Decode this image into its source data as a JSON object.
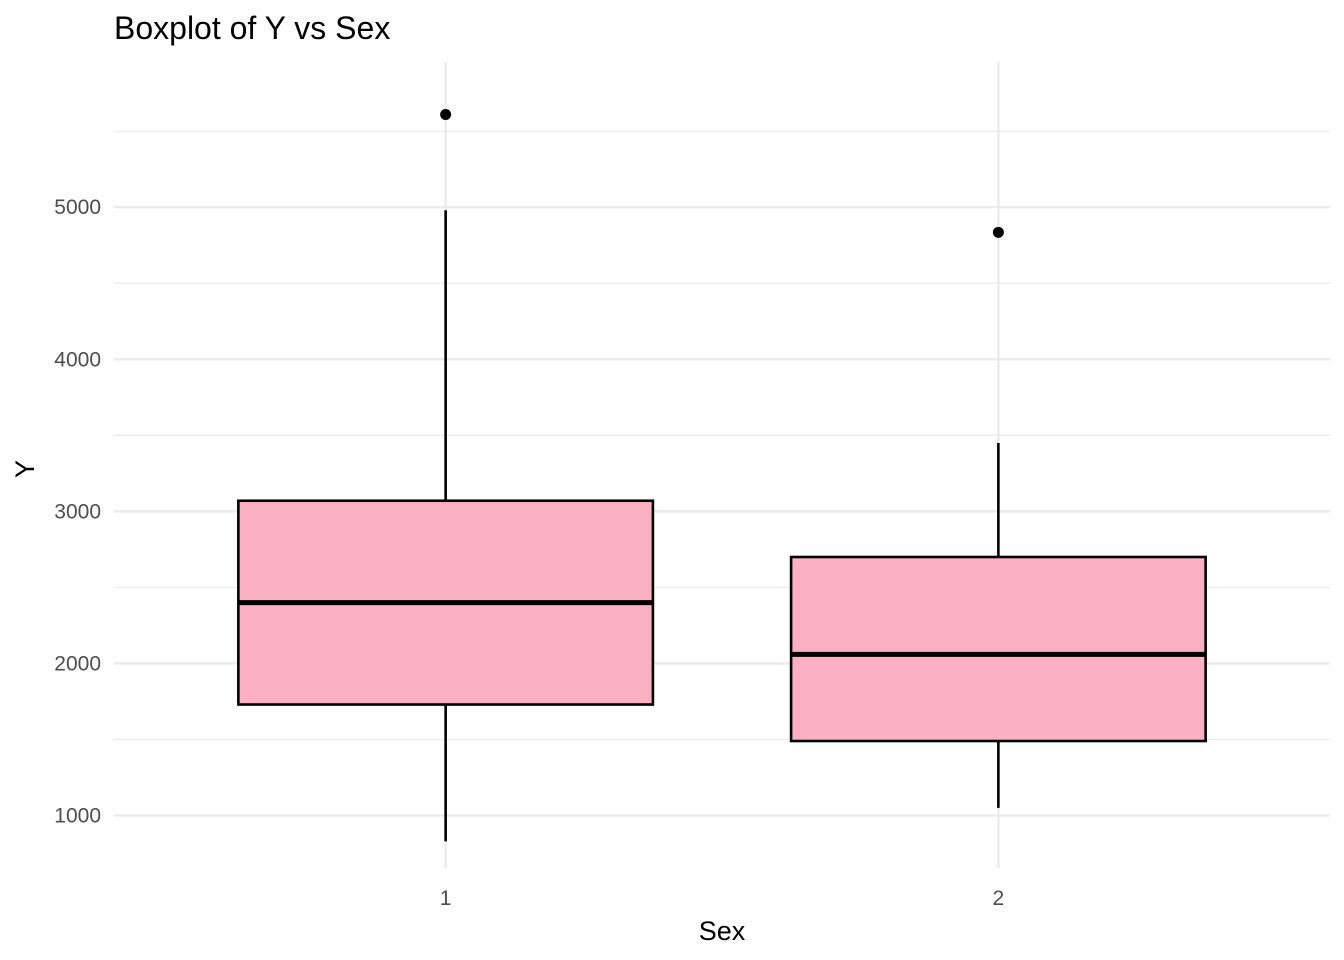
{
  "chart_data": {
    "type": "boxplot",
    "title": "Boxplot of Y vs Sex",
    "xlabel": "Sex",
    "ylabel": "Y",
    "categories": [
      "1",
      "2"
    ],
    "boxes": [
      {
        "category": "1",
        "whisker_low": 830,
        "q1": 1730,
        "median": 2400,
        "q3": 3070,
        "whisker_high": 4980,
        "outliers": [
          5610
        ]
      },
      {
        "category": "2",
        "whisker_low": 1050,
        "q1": 1490,
        "median": 2060,
        "q3": 2700,
        "whisker_high": 3450,
        "outliers": [
          4835
        ]
      }
    ],
    "y_ticks": [
      1000,
      2000,
      3000,
      4000,
      5000
    ],
    "ylim": [
      655,
      5955
    ],
    "grid": true,
    "legend": "none",
    "colors": {
      "box_fill": "#FBB0C3",
      "box_stroke": "#000000",
      "grid": "#EBEBEB",
      "tick_text": "#4D4D4D",
      "outlier": "#000000"
    }
  }
}
